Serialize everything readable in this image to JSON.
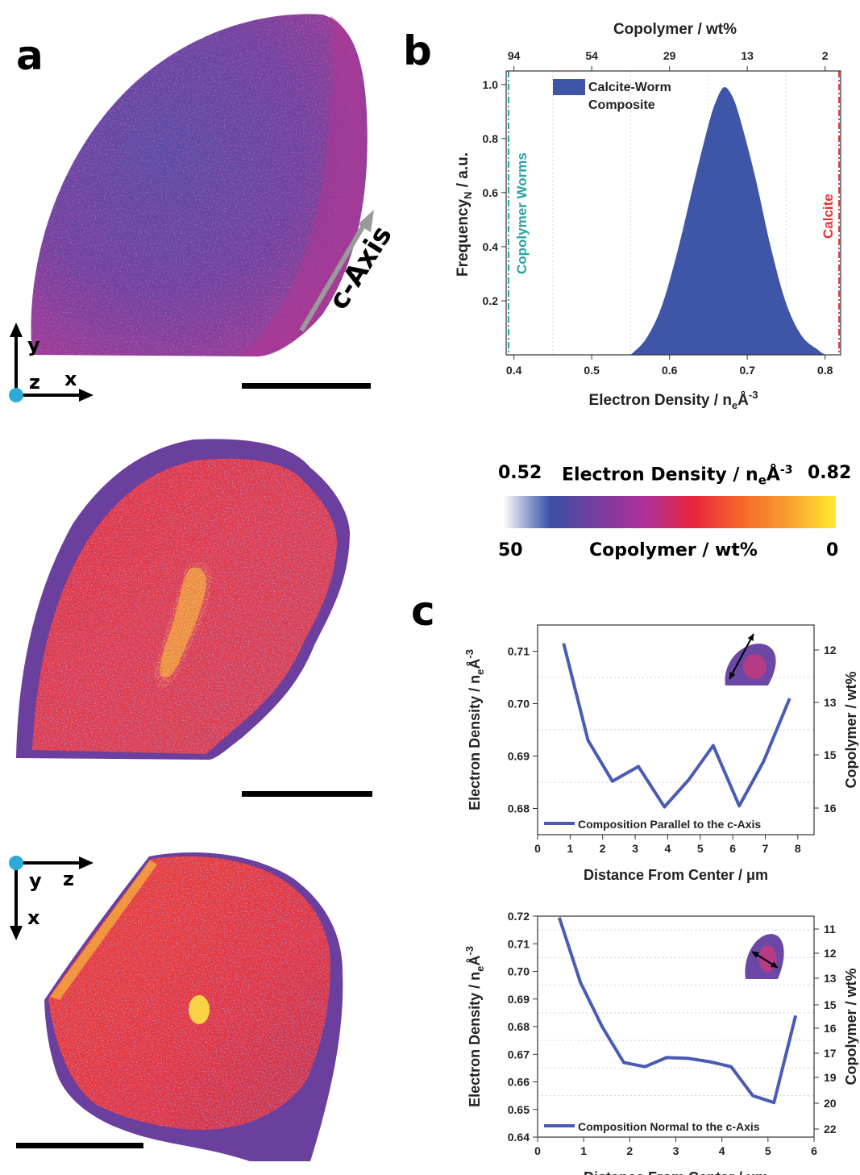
{
  "panels": {
    "a": "a",
    "b": "b",
    "c": "c"
  },
  "panel_a": {
    "c_axis_label": "c-Axis",
    "axes_top": {
      "vertical": "y",
      "horizontal": "x",
      "out_of_plane": "z"
    },
    "axes_bottom": {
      "vertical": "x",
      "horizontal": "z",
      "out_of_plane": "y"
    }
  },
  "colorbar": {
    "title": "Electron Density / n",
    "title_sub": "e",
    "title_unit": "Å",
    "title_sup": "-3",
    "min_density": "0.52",
    "max_density": "0.82",
    "bottom_title": "Copolymer / wt%",
    "min_copolymer": "50",
    "max_copolymer": "0",
    "colors": [
      "#ffffff",
      "#3a50a6",
      "#7a3c9c",
      "#b0309a",
      "#e8243c",
      "#f6642a",
      "#f8a030",
      "#ffeb2e"
    ]
  },
  "chart_data": [
    {
      "id": "b",
      "type": "area",
      "xlabel": "Electron Density / n",
      "xlabel_sub": "e",
      "xlabel_unit": "Å",
      "xlabel_sup": "-3",
      "ylabel": "Frequency",
      "ylabel_sub": "N",
      "ylabel_tail": " / a.u.",
      "top_label": "Copolymer / wt%",
      "xlim": [
        0.39,
        0.82
      ],
      "ylim": [
        0,
        1.05
      ],
      "xticks": [
        "0.4",
        "0.5",
        "0.6",
        "0.7",
        "0.8"
      ],
      "yticks": [
        "0.2",
        "0.4",
        "0.6",
        "0.8",
        "1.0"
      ],
      "top_ticks": [
        "94",
        "54",
        "29",
        "13",
        "2"
      ],
      "grid": true,
      "legend": "top-left",
      "legend_lines": [
        "Calcite-Worm",
        "Composite"
      ],
      "series": [
        {
          "name": "Calcite-Worm Composite",
          "color": "#3e55a8",
          "x": [
            0.55,
            0.57,
            0.59,
            0.61,
            0.63,
            0.65,
            0.66,
            0.67,
            0.68,
            0.69,
            0.71,
            0.73,
            0.75,
            0.77,
            0.79,
            0.8
          ],
          "y": [
            0.0,
            0.06,
            0.18,
            0.38,
            0.62,
            0.85,
            0.94,
            0.99,
            0.96,
            0.88,
            0.66,
            0.4,
            0.19,
            0.07,
            0.02,
            0.0
          ]
        }
      ],
      "reference_lines": [
        {
          "label": "Copolymer Worms",
          "x": 0.393,
          "color": "#2aa3a3"
        },
        {
          "label": "Calcite",
          "x": 0.818,
          "color": "#e8342e"
        }
      ]
    },
    {
      "id": "c-parallel",
      "type": "line",
      "xlabel": "Distance From Center / μm",
      "ylabel": "Electron Density / n",
      "ylabel_sub": "e",
      "ylabel_unit": "Å",
      "ylabel_sup": "-3",
      "right_label": "Copolymer / wt%",
      "xlim": [
        0,
        8.5
      ],
      "ylim": [
        0.675,
        0.715
      ],
      "xticks": [
        "0",
        "1",
        "2",
        "3",
        "4",
        "5",
        "6",
        "7",
        "8"
      ],
      "yticks": [
        "0.68",
        "0.69",
        "0.70",
        "0.71"
      ],
      "right_ticks": [
        "12",
        "13",
        "15",
        "16"
      ],
      "legend": "bottom-left",
      "series": [
        {
          "name": "Composition Parallel to the c-Axis",
          "color": "#4a5bb5",
          "x": [
            0.8,
            1.55,
            2.3,
            3.1,
            3.9,
            4.65,
            5.4,
            6.2,
            6.95,
            7.75
          ],
          "y": [
            0.7115,
            0.693,
            0.6852,
            0.688,
            0.6803,
            0.6855,
            0.692,
            0.6805,
            0.689,
            0.701
          ]
        }
      ]
    },
    {
      "id": "c-normal",
      "type": "line",
      "xlabel": "Distance From Center / μm",
      "ylabel": "Electron Density / n",
      "ylabel_sub": "e",
      "ylabel_unit": "Å",
      "ylabel_sup": "-3",
      "right_label": "Copolymer / wt%",
      "xlim": [
        0,
        6
      ],
      "ylim": [
        0.64,
        0.72
      ],
      "xticks": [
        "0",
        "1",
        "2",
        "3",
        "4",
        "5",
        "6"
      ],
      "yticks": [
        "0.64",
        "0.65",
        "0.66",
        "0.67",
        "0.68",
        "0.69",
        "0.70",
        "0.71",
        "0.72"
      ],
      "right_ticks": [
        "11",
        "12",
        "13",
        "15",
        "16",
        "17",
        "19",
        "20",
        "22"
      ],
      "legend": "bottom-left",
      "series": [
        {
          "name": "Composition Normal to the c-Axis",
          "color": "#4a5bb5",
          "x": [
            0.47,
            0.93,
            1.4,
            1.87,
            2.33,
            2.8,
            3.27,
            3.73,
            4.2,
            4.67,
            5.13,
            5.6
          ],
          "y": [
            0.7195,
            0.696,
            0.68,
            0.667,
            0.6655,
            0.6688,
            0.6685,
            0.6673,
            0.6655,
            0.655,
            0.6525,
            0.684
          ]
        }
      ]
    }
  ]
}
